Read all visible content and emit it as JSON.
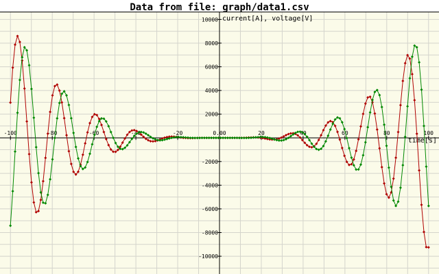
{
  "title": "Data from file: graph/data1.csv",
  "chart_data": {
    "type": "line",
    "title": "Data from file: graph/data1.csv",
    "xlabel": "time[s]",
    "ylabel": "current[A], voltage[V]",
    "xlim": [
      -105,
      105
    ],
    "ylim": [
      -11500,
      10600
    ],
    "grid": true,
    "colors": {
      "background": "#fbfbe9",
      "grid": "#d4d4cc",
      "series_1": "#b00000",
      "series_2": "#008800"
    },
    "x_ticks": [
      -100,
      -80,
      -60,
      -40,
      -20,
      0,
      20,
      40,
      60,
      80,
      100
    ],
    "x_tick_labels": [
      "-100",
      "-80",
      "-60",
      "-40",
      "-20",
      "0.00",
      "20",
      "40",
      "60",
      "80",
      "100"
    ],
    "y_ticks": [
      10000,
      8000,
      6000,
      4000,
      2000,
      0,
      -2000,
      -4000,
      -6000,
      -8000,
      -10000
    ],
    "y_tick_labels": [
      "10000",
      "8000",
      "6000",
      "4000",
      "2000",
      "0.00",
      "-2000",
      "-4000",
      "-6000",
      "-8000",
      "-10000"
    ],
    "series_model": "y = A(x)·sin(ω·x + φ), amplitude ≈ 0.0096·|x|^3",
    "series": [
      {
        "amp_coeff": 0.0096,
        "omega": 0.3375,
        "phase": 2.65,
        "points": 180,
        "line_width": 1
      },
      {
        "amp_coeff": 0.0096,
        "omega": 0.3375,
        "phase": 1.45,
        "points": 180,
        "line_width": 1
      }
    ]
  }
}
